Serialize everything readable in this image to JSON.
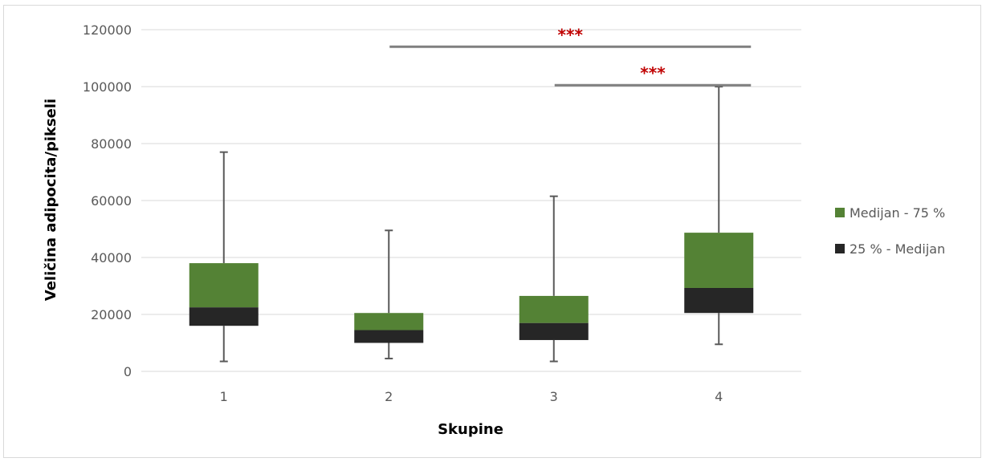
{
  "chart_data": {
    "type": "box",
    "title": "",
    "xlabel": "Skupine",
    "ylabel": "Veličina adipocita/pikseli",
    "ylim": [
      0,
      120000
    ],
    "yticks": [
      "0",
      "20000",
      "40000",
      "60000",
      "80000",
      "100000",
      "120000"
    ],
    "categories": [
      "1",
      "2",
      "3",
      "4"
    ],
    "grid": true,
    "legend_position": "right",
    "series": [
      {
        "name": "25 % - Medijan",
        "color": "#262626",
        "values": [
          [
            16000,
            22500
          ],
          [
            10000,
            14500
          ],
          [
            11000,
            17000
          ],
          [
            20500,
            29300
          ]
        ]
      },
      {
        "name": "Medijan - 75 %",
        "color": "#548235",
        "values": [
          [
            22500,
            38000
          ],
          [
            14500,
            20500
          ],
          [
            17000,
            26500
          ],
          [
            29300,
            48700
          ]
        ]
      }
    ],
    "whiskers": {
      "min": [
        3500,
        4500,
        3500,
        9500
      ],
      "max": [
        77000,
        49500,
        61500,
        100000
      ]
    },
    "significance": [
      {
        "from": "2",
        "to": "4",
        "y": 114000,
        "label": "***"
      },
      {
        "from": "3",
        "to": "4",
        "y": 100500,
        "label": "***"
      }
    ],
    "colors": {
      "significance_text": "#c00000",
      "significance_line": "#7f7f7f",
      "grid": "#d9d9d9",
      "whisker": "#595959"
    }
  }
}
